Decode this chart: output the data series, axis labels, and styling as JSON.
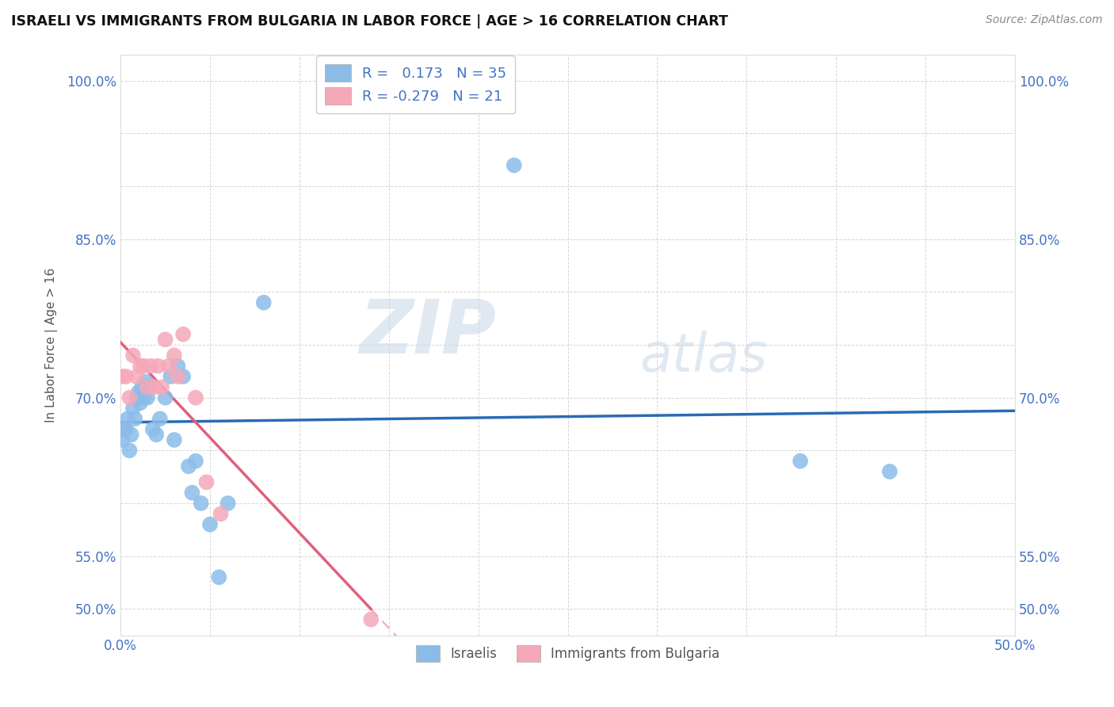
{
  "title": "ISRAELI VS IMMIGRANTS FROM BULGARIA IN LABOR FORCE | AGE > 16 CORRELATION CHART",
  "source": "Source: ZipAtlas.com",
  "ylabel": "In Labor Force | Age > 16",
  "xlim": [
    0.0,
    0.5
  ],
  "ylim": [
    0.475,
    1.025
  ],
  "ytick_positions": [
    0.5,
    0.55,
    0.6,
    0.65,
    0.7,
    0.75,
    0.8,
    0.85,
    0.9,
    0.95,
    1.0
  ],
  "ytick_show": [
    0.5,
    0.55,
    0.7,
    0.85,
    1.0
  ],
  "xtick_positions": [
    0.0,
    0.05,
    0.1,
    0.15,
    0.2,
    0.25,
    0.3,
    0.35,
    0.4,
    0.45,
    0.5
  ],
  "xtick_show": [
    0.0,
    0.5
  ],
  "israeli_x": [
    0.001,
    0.002,
    0.003,
    0.004,
    0.005,
    0.006,
    0.007,
    0.008,
    0.009,
    0.01,
    0.011,
    0.012,
    0.013,
    0.014,
    0.015,
    0.016,
    0.018,
    0.02,
    0.022,
    0.025,
    0.028,
    0.03,
    0.032,
    0.035,
    0.038,
    0.04,
    0.042,
    0.045,
    0.05,
    0.055,
    0.06,
    0.08,
    0.22,
    0.38,
    0.43
  ],
  "israeli_y": [
    0.66,
    0.67,
    0.67,
    0.68,
    0.65,
    0.665,
    0.69,
    0.68,
    0.7,
    0.705,
    0.695,
    0.71,
    0.7,
    0.715,
    0.7,
    0.71,
    0.67,
    0.665,
    0.68,
    0.7,
    0.72,
    0.66,
    0.73,
    0.72,
    0.635,
    0.61,
    0.64,
    0.6,
    0.58,
    0.53,
    0.6,
    0.79,
    0.92,
    0.64,
    0.63
  ],
  "bulgaria_x": [
    0.001,
    0.003,
    0.005,
    0.007,
    0.009,
    0.011,
    0.013,
    0.015,
    0.017,
    0.019,
    0.021,
    0.023,
    0.025,
    0.027,
    0.03,
    0.032,
    0.035,
    0.042,
    0.048,
    0.056,
    0.14
  ],
  "bulgaria_y": [
    0.72,
    0.72,
    0.7,
    0.74,
    0.72,
    0.73,
    0.73,
    0.71,
    0.73,
    0.71,
    0.73,
    0.71,
    0.755,
    0.73,
    0.74,
    0.72,
    0.76,
    0.7,
    0.62,
    0.59,
    0.49
  ],
  "israeli_color": "#8bbce8",
  "bulgaria_color": "#f5a8b8",
  "israeli_line_color": "#2a6ab5",
  "bulgaria_line_color": "#e0607a",
  "r_israeli": 0.173,
  "n_israeli": 35,
  "r_bulgaria": -0.279,
  "n_bulgaria": 21,
  "watermark_zip": "ZIP",
  "watermark_atlas": "atlas",
  "background_color": "#ffffff",
  "grid_color": "#cccccc",
  "tick_color": "#4472c4",
  "label_color": "#555555",
  "title_color": "#111111",
  "source_color": "#888888"
}
